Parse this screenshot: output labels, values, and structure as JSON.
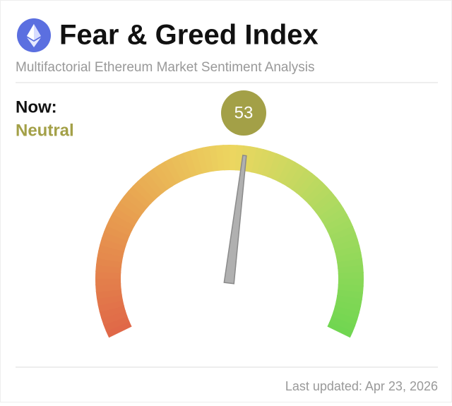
{
  "chart_data": {
    "type": "gauge",
    "title": "Fear & Greed Index",
    "subtitle": "Multifactorial Ethereum Market Sentiment Analysis",
    "now_label": "Now:",
    "status": "Neutral",
    "value": 53,
    "ylim": [
      0,
      100
    ],
    "color": "#a3a047",
    "footer": "Last updated: Apr 23, 2026"
  }
}
